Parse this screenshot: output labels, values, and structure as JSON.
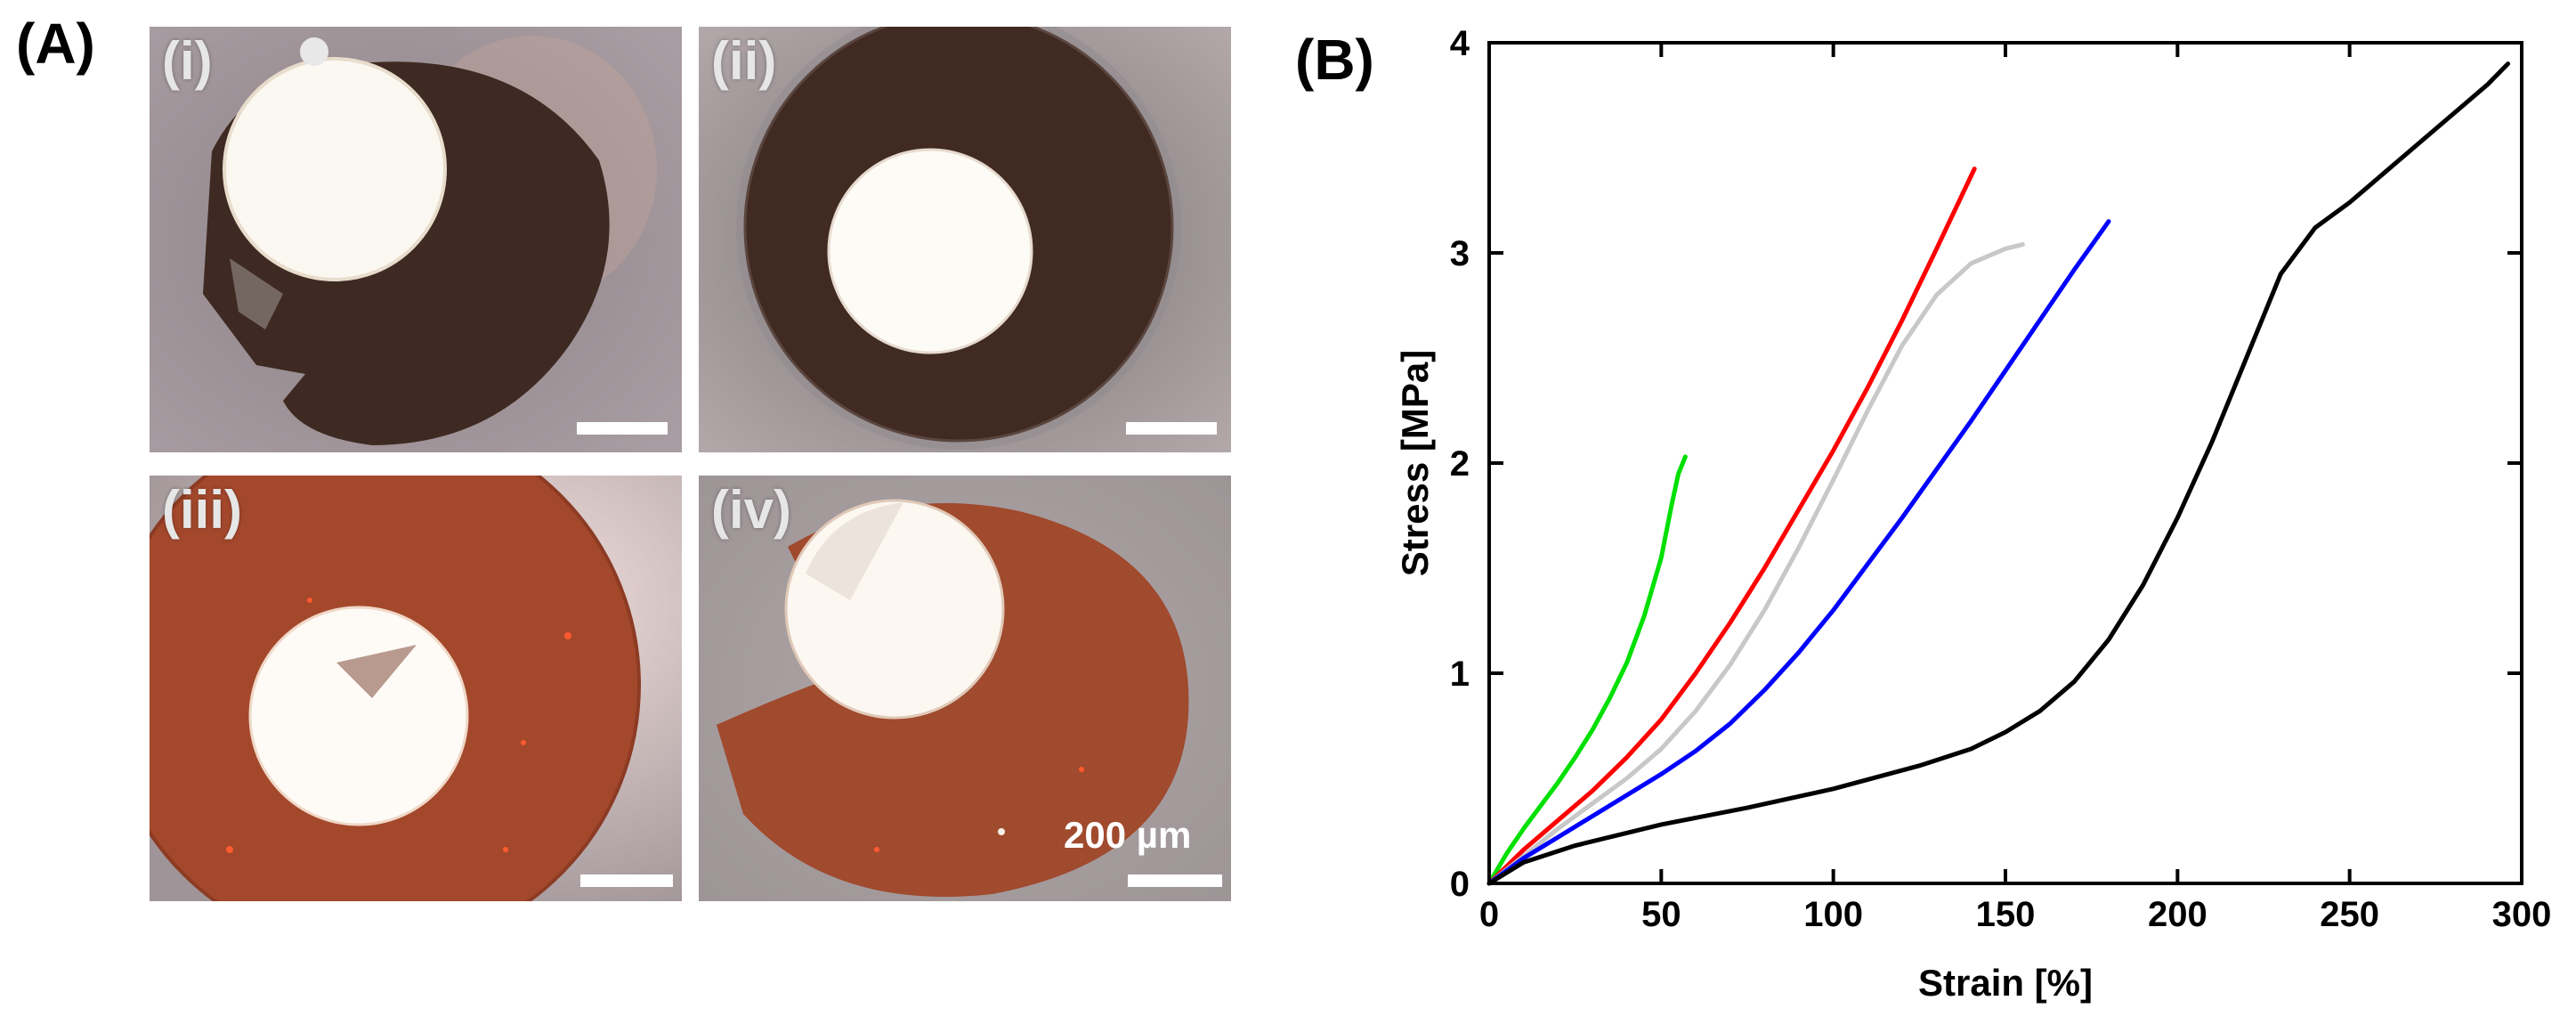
{
  "panels": {
    "A": {
      "label": "(A)"
    },
    "B": {
      "label": "(B)"
    }
  },
  "micrographs": [
    {
      "label": "(i)",
      "tone": "dark-brown"
    },
    {
      "label": "(ii)",
      "tone": "dark-brown"
    },
    {
      "label": "(iii)",
      "tone": "orange-brown"
    },
    {
      "label": "(iv)",
      "tone": "orange-brown"
    }
  ],
  "scale_bar_text": "200 µm",
  "chart_data": {
    "type": "line",
    "xlabel": "Strain [%]",
    "ylabel": "Stress [MPa]",
    "xlim": [
      0,
      300
    ],
    "ylim": [
      0,
      4
    ],
    "xticks": [
      "0",
      "50",
      "100",
      "150",
      "200",
      "250",
      "300"
    ],
    "yticks": [
      "0",
      "1",
      "2",
      "3",
      "4"
    ],
    "series": [
      {
        "name": "green",
        "color": "#00e000",
        "x": [
          0,
          5,
          10,
          15,
          20,
          25,
          30,
          35,
          40,
          45,
          50,
          53,
          55,
          57
        ],
        "y": [
          0,
          0.14,
          0.26,
          0.37,
          0.48,
          0.6,
          0.73,
          0.88,
          1.05,
          1.27,
          1.55,
          1.8,
          1.95,
          2.03
        ]
      },
      {
        "name": "red",
        "color": "#ff0000",
        "x": [
          0,
          10,
          20,
          30,
          40,
          50,
          60,
          70,
          80,
          90,
          100,
          110,
          120,
          130,
          141
        ],
        "y": [
          0,
          0.16,
          0.3,
          0.44,
          0.6,
          0.78,
          1.0,
          1.24,
          1.5,
          1.78,
          2.06,
          2.36,
          2.68,
          3.02,
          3.4
        ]
      },
      {
        "name": "grey",
        "color": "#c8c8c8",
        "x": [
          0,
          10,
          20,
          30,
          40,
          50,
          60,
          70,
          80,
          90,
          100,
          110,
          120,
          130,
          140,
          150,
          155
        ],
        "y": [
          0,
          0.13,
          0.26,
          0.38,
          0.5,
          0.64,
          0.82,
          1.04,
          1.3,
          1.6,
          1.92,
          2.25,
          2.56,
          2.8,
          2.95,
          3.02,
          3.04
        ]
      },
      {
        "name": "blue",
        "color": "#0000ff",
        "x": [
          0,
          10,
          20,
          30,
          40,
          50,
          60,
          70,
          80,
          90,
          100,
          110,
          120,
          130,
          140,
          150,
          160,
          170,
          180
        ],
        "y": [
          0,
          0.12,
          0.22,
          0.32,
          0.42,
          0.52,
          0.63,
          0.76,
          0.92,
          1.1,
          1.3,
          1.52,
          1.74,
          1.97,
          2.2,
          2.44,
          2.68,
          2.92,
          3.15
        ]
      },
      {
        "name": "black",
        "color": "#000000",
        "x": [
          0,
          10,
          25,
          50,
          75,
          100,
          125,
          140,
          150,
          160,
          170,
          180,
          190,
          200,
          210,
          220,
          230,
          240,
          250,
          260,
          270,
          280,
          290,
          296
        ],
        "y": [
          0,
          0.1,
          0.18,
          0.28,
          0.36,
          0.45,
          0.56,
          0.64,
          0.72,
          0.82,
          0.96,
          1.16,
          1.42,
          1.74,
          2.1,
          2.5,
          2.9,
          3.12,
          3.24,
          3.38,
          3.52,
          3.66,
          3.8,
          3.9
        ]
      }
    ]
  }
}
